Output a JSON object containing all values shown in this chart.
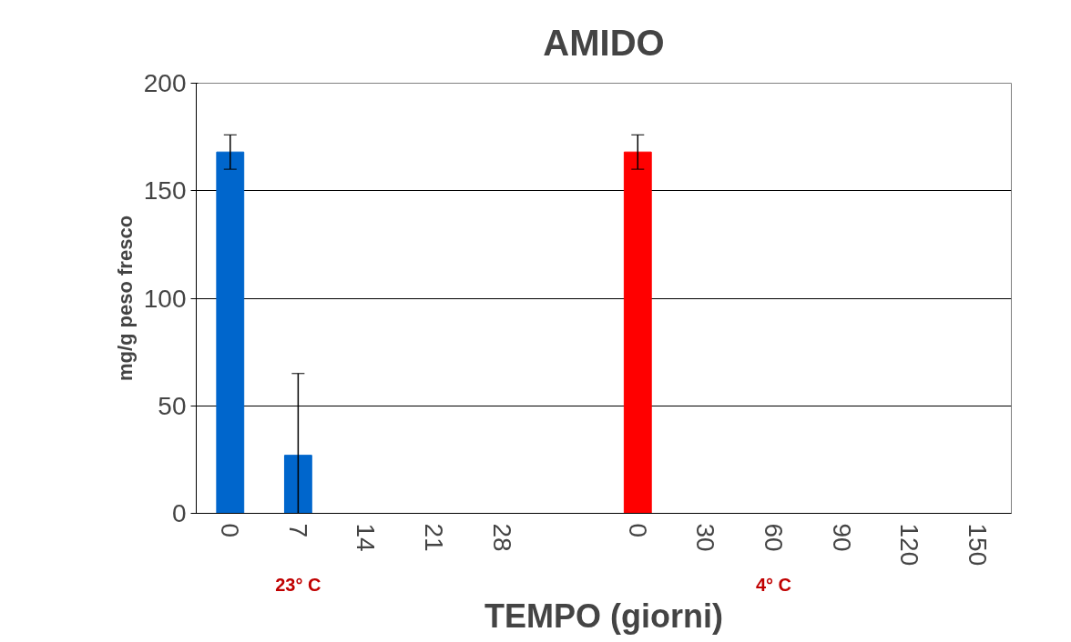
{
  "chart_data": {
    "type": "bar",
    "title": "AMIDO",
    "xlabel": "TEMPO (giorni)",
    "ylabel": "mg/g peso fresco",
    "categories": [
      "0",
      "7",
      "14",
      "21",
      "28",
      null,
      "0",
      "30",
      "60",
      "90",
      "120",
      "150"
    ],
    "values": [
      168,
      27,
      0,
      0,
      0,
      null,
      168,
      0,
      0,
      0,
      0,
      0
    ],
    "colors": [
      "#0066cc",
      "#0066cc",
      "#0066cc",
      "#0066cc",
      "#0066cc",
      "#0066cc",
      "#ff0000",
      "#ff0000",
      "#ff0000",
      "#ff0000",
      "#ff0000",
      "#ff0000"
    ],
    "errors": [
      8,
      [
        0,
        65
      ],
      null,
      null,
      null,
      null,
      8,
      null,
      null,
      null,
      null,
      null
    ],
    "ylim": [
      0,
      200
    ],
    "yticks": [
      0,
      50,
      100,
      150,
      200
    ],
    "grid": "y",
    "annotations": [
      "23° C",
      "4° C"
    ]
  }
}
